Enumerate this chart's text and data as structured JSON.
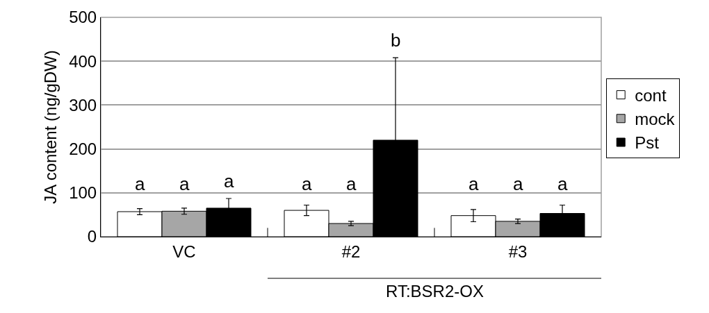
{
  "chart_data": {
    "type": "bar",
    "ylabel": "JA content (ng/gDW)",
    "categories": [
      "VC",
      "#2",
      "#3"
    ],
    "series": [
      {
        "name": "cont",
        "color": "#ffffff",
        "values": [
          57,
          60,
          48
        ],
        "errors": [
          7,
          12,
          14
        ]
      },
      {
        "name": "mock",
        "color": "#a6a6a6",
        "values": [
          58,
          30,
          35
        ],
        "errors": [
          7,
          5,
          5
        ]
      },
      {
        "name": "Pst",
        "color": "#000000",
        "values": [
          65,
          220,
          53
        ],
        "errors": [
          22,
          188,
          19
        ]
      }
    ],
    "ylim": [
      0,
      500
    ],
    "yticks": [
      0,
      100,
      200,
      300,
      400,
      500
    ],
    "grid": "y",
    "legend": "right",
    "annotations": [
      "a",
      "a",
      "a",
      "a",
      "a",
      "b",
      "a",
      "a",
      "a",
      "RT:BSR2-OX"
    ]
  }
}
